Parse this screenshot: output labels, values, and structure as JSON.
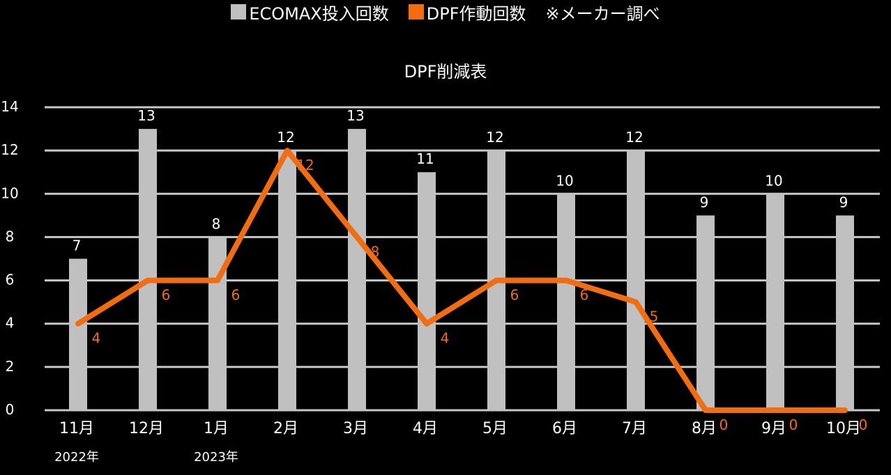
{
  "legend": {
    "items": [
      {
        "label": "ECOMAX投入回数",
        "color": "#c0c0c0"
      },
      {
        "label": "DPF作動回数",
        "color": "#f26d12"
      }
    ],
    "note": "※メーカー調べ"
  },
  "chart_data": {
    "type": "bar",
    "title": "DPF削減表",
    "categories": [
      "11月",
      "12月",
      "1月",
      "2月",
      "3月",
      "4月",
      "5月",
      "6月",
      "7月",
      "8月",
      "9月",
      "10月"
    ],
    "year_labels": [
      {
        "category_index": 0,
        "label": "2022年"
      },
      {
        "category_index": 2,
        "label": "2023年"
      }
    ],
    "series": [
      {
        "name": "ECOMAX投入回数",
        "type": "bar",
        "color": "#c0c0c0",
        "values": [
          7,
          13,
          8,
          12,
          13,
          11,
          12,
          10,
          12,
          9,
          10,
          9
        ]
      },
      {
        "name": "DPF作動回数",
        "type": "line",
        "color": "#f26d12",
        "values": [
          4,
          6,
          6,
          12,
          8,
          4,
          6,
          6,
          5,
          0,
          0,
          0
        ]
      }
    ],
    "ylim": [
      0,
      14
    ],
    "yticks": [
      0,
      2,
      4,
      6,
      8,
      10,
      12,
      14
    ],
    "grid": true,
    "legend_position": "top"
  }
}
